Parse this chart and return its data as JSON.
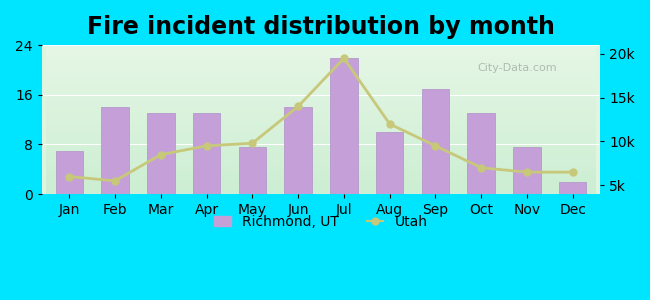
{
  "title": "Fire incident distribution by month",
  "months": [
    "Jan",
    "Feb",
    "Mar",
    "Apr",
    "May",
    "Jun",
    "Jul",
    "Aug",
    "Sep",
    "Oct",
    "Nov",
    "Dec"
  ],
  "richmond_values": [
    7,
    14,
    13,
    13,
    7.5,
    14,
    22,
    10,
    17,
    13,
    7.5,
    2
  ],
  "utah_values": [
    6000,
    5500,
    8500,
    9500,
    9800,
    14000,
    19500,
    12000,
    9500,
    7000,
    6500,
    6500
  ],
  "bar_color": "#c5a0d8",
  "bar_edge_color": "#b090c8",
  "line_color": "#c8c87a",
  "marker_color": "#c8c87a",
  "outer_bg": "#00e5ff",
  "left_ylim": [
    0,
    24
  ],
  "left_yticks": [
    0,
    8,
    16,
    24
  ],
  "right_ylim": [
    4000,
    21000
  ],
  "right_yticks": [
    5000,
    10000,
    15000,
    20000
  ],
  "right_yticklabels": [
    "5k",
    "10k",
    "15k",
    "20k"
  ],
  "title_fontsize": 17,
  "tick_fontsize": 10,
  "legend_fontsize": 10,
  "watermark": "City-Data.com"
}
